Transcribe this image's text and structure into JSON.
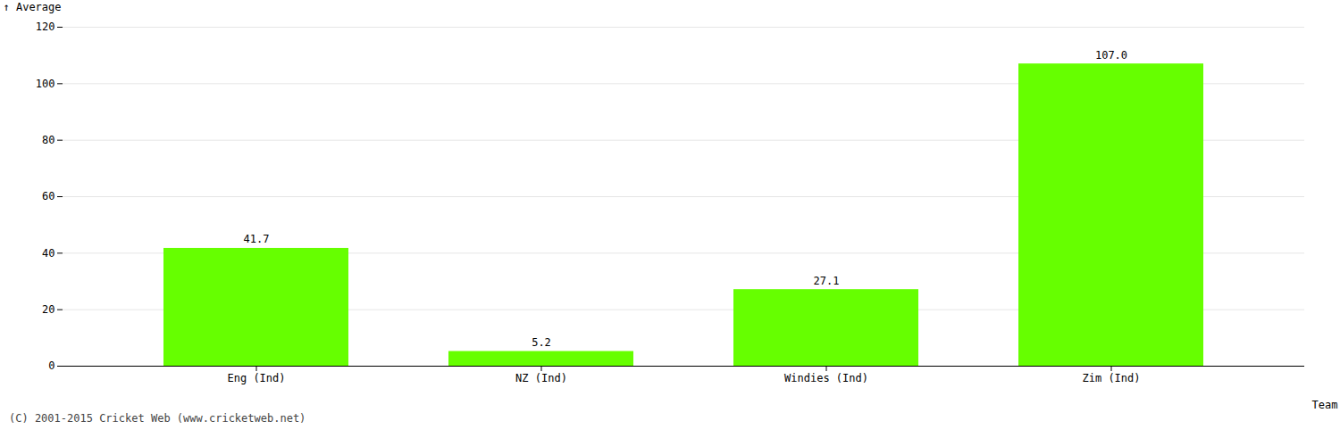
{
  "chart_data": {
    "type": "bar",
    "categories": [
      "Eng (Ind)",
      "NZ (Ind)",
      "Windies (Ind)",
      "Zim (Ind)"
    ],
    "values": [
      41.7,
      5.2,
      27.1,
      107.0
    ],
    "value_labels": [
      "41.7",
      "5.2",
      "27.1",
      "107.0"
    ],
    "data_labels": true,
    "color": "#66ff00",
    "xlabel": "Team",
    "ylabel": "Average",
    "ylim": [
      0,
      120
    ],
    "yticks": [
      0,
      20,
      40,
      60,
      80,
      100,
      120
    ],
    "grid": true,
    "annotations": [
      "(C) 2001-2015 Cricket Web (www.cricketweb.net)"
    ]
  }
}
